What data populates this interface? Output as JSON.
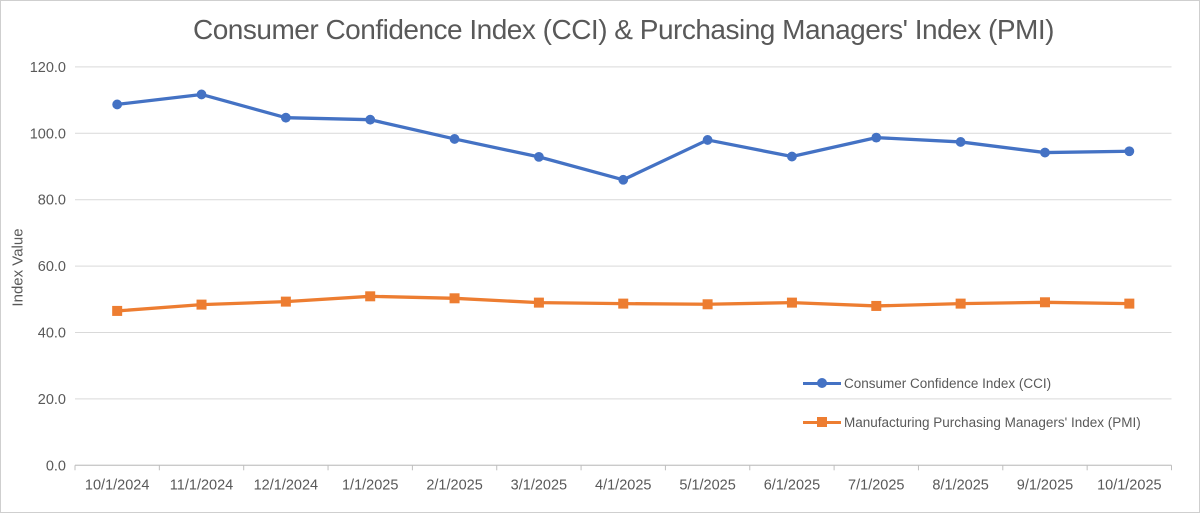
{
  "chart_data": {
    "type": "line",
    "title": "Consumer Confidence Index (CCI) & Purchasing Managers' Index (PMI)",
    "xlabel": "",
    "ylabel": "Index Value",
    "categories": [
      "10/1/2024",
      "11/1/2024",
      "12/1/2024",
      "1/1/2025",
      "2/1/2025",
      "3/1/2025",
      "4/1/2025",
      "5/1/2025",
      "6/1/2025",
      "7/1/2025",
      "8/1/2025",
      "9/1/2025",
      "10/1/2025"
    ],
    "series": [
      {
        "name": "Consumer Confidence Index (CCI)",
        "color": "#4472C4",
        "marker": "circle",
        "values": [
          108.7,
          111.7,
          104.7,
          104.1,
          98.3,
          92.9,
          86.0,
          98.0,
          93.0,
          98.7,
          97.4,
          94.2,
          94.6
        ]
      },
      {
        "name": "Manufacturing Purchasing Managers' Index (PMI)",
        "color": "#ED7D31",
        "marker": "square",
        "values": [
          46.5,
          48.4,
          49.3,
          50.9,
          50.3,
          49.0,
          48.7,
          48.5,
          49.0,
          48.0,
          48.7,
          49.1,
          48.7
        ]
      }
    ],
    "ylim": [
      0,
      120
    ],
    "ytick_step": 20,
    "ytick_labels": [
      "0.0",
      "20.0",
      "40.0",
      "60.0",
      "80.0",
      "100.0",
      "120.0"
    ],
    "grid": true,
    "legend_position": "right-lower"
  },
  "styles": {
    "background": "#FFFFFF",
    "grid_color": "#D9D9D9",
    "axis_color": "#BFBFBF",
    "text_color": "#595959",
    "border_color": "#CFCFCF",
    "series_blue": "#4472C4",
    "series_orange": "#ED7D31"
  }
}
